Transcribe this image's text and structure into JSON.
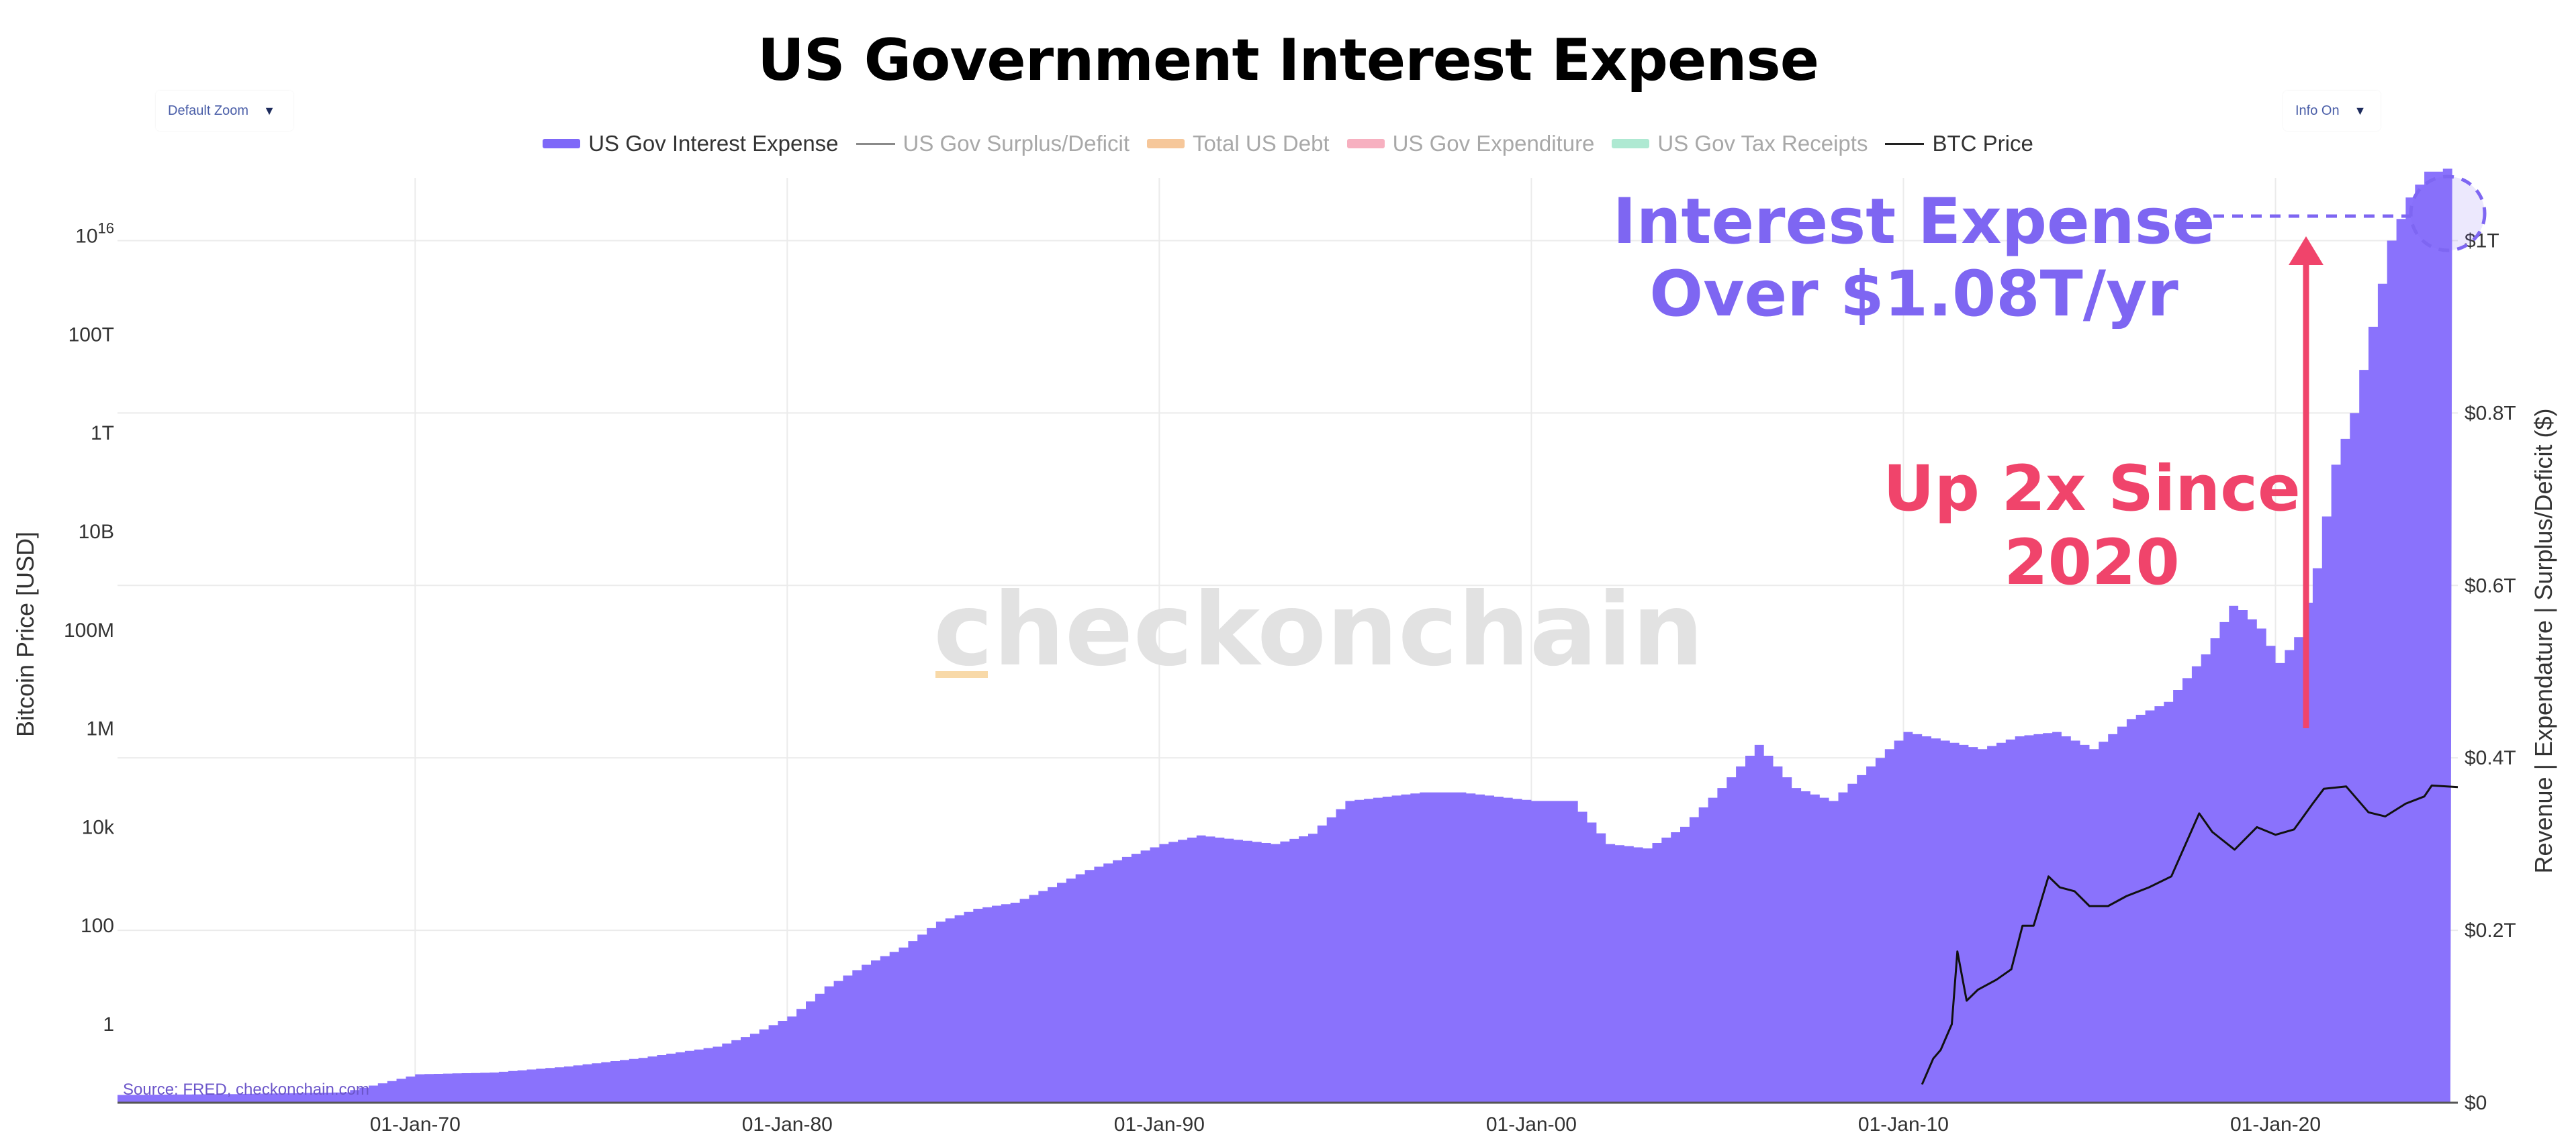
{
  "title": "US Government Interest Expense",
  "controls": {
    "zoom_label": "Default Zoom",
    "info_label": "Info On"
  },
  "legend": [
    {
      "label": "US Gov Interest Expense",
      "color": "#7e68f8",
      "style": "swatch",
      "active": true
    },
    {
      "label": "US Gov Surplus/Deficit",
      "color": "#8a8a8a",
      "style": "line",
      "active": false
    },
    {
      "label": "Total US Debt",
      "color": "#f6c79a",
      "style": "swatch",
      "active": false
    },
    {
      "label": "US Gov Expenditure",
      "color": "#f7b0c0",
      "style": "swatch",
      "active": false
    },
    {
      "label": "US Gov Tax Receipts",
      "color": "#aee9d2",
      "style": "swatch",
      "active": false
    },
    {
      "label": "BTC Price",
      "color": "#222222",
      "style": "line",
      "active": true
    }
  ],
  "watermark": "_checkonchain",
  "source": "Source: FRED, checkonchain.com",
  "annotations": {
    "interest_line1": "Interest Expense",
    "interest_line2": "Over $1.08T/yr",
    "up_line1": "Up 2x Since",
    "up_line2": "2020"
  },
  "colors": {
    "interest_fill": "#8a72fc",
    "btc_line": "#111111",
    "annotation_purple": "#7e66f2",
    "annotation_red": "#f0446b"
  },
  "chart_data": {
    "type": "area",
    "title": "US Government Interest Expense",
    "left_axis": {
      "label": "Bitcoin Price [USD]",
      "scale": "log",
      "ticks": [
        {
          "value": 1,
          "label": "1"
        },
        {
          "value": 100,
          "label": "100"
        },
        {
          "value": 10000,
          "label": "10k"
        },
        {
          "value": 1000000,
          "label": "1M"
        },
        {
          "value": 100000000,
          "label": "100M"
        },
        {
          "value": 10000000000,
          "label": "10B"
        },
        {
          "value": 1000000000000,
          "label": "1T"
        },
        {
          "value": 100000000000000,
          "label": "100T"
        },
        {
          "value": 10000000000000000,
          "label": "10^16"
        }
      ]
    },
    "right_axis": {
      "label": "Revenue | Expendature | Surplus/Deficit ($)",
      "scale": "linear",
      "ylim": [
        0,
        1.1
      ],
      "ticks": [
        {
          "value": 0,
          "label": "$0"
        },
        {
          "value": 0.2,
          "label": "$0.2T"
        },
        {
          "value": 0.4,
          "label": "$0.4T"
        },
        {
          "value": 0.6,
          "label": "$0.6T"
        },
        {
          "value": 0.8,
          "label": "$0.8T"
        },
        {
          "value": 1.0,
          "label": "$1T"
        }
      ]
    },
    "x_axis": {
      "range": [
        1962,
        2024.9
      ],
      "ticks": [
        {
          "value": 1970,
          "label": "01-Jan-70"
        },
        {
          "value": 1980,
          "label": "01-Jan-80"
        },
        {
          "value": 1990,
          "label": "01-Jan-90"
        },
        {
          "value": 2000,
          "label": "01-Jan-00"
        },
        {
          "value": 2010,
          "label": "01-Jan-10"
        },
        {
          "value": 2020,
          "label": "01-Jan-20"
        }
      ]
    },
    "series": [
      {
        "name": "US Gov Interest Expense",
        "axis": "right",
        "units": "trillions USD/yr",
        "x": [
          1962,
          1965,
          1968,
          1970,
          1972,
          1974,
          1976,
          1978,
          1979,
          1980,
          1981,
          1982,
          1983,
          1984,
          1985,
          1986,
          1987,
          1988,
          1989,
          1990,
          1991,
          1992,
          1993,
          1994,
          1995,
          1996,
          1997,
          1998,
          1999,
          2000,
          2001,
          2002,
          2003,
          2004,
          2005,
          2006,
          2007,
          2008,
          2009,
          2010,
          2011,
          2012,
          2013,
          2014,
          2015,
          2016,
          2017,
          2018,
          2018.8,
          2019.5,
          2020,
          2020.5,
          2021,
          2021.5,
          2022,
          2022.5,
          2023,
          2023.5,
          2024,
          2024.4,
          2024.7
        ],
        "values": [
          0.009,
          0.01,
          0.012,
          0.033,
          0.035,
          0.042,
          0.052,
          0.065,
          0.08,
          0.1,
          0.135,
          0.16,
          0.18,
          0.21,
          0.225,
          0.232,
          0.25,
          0.27,
          0.285,
          0.3,
          0.31,
          0.305,
          0.3,
          0.312,
          0.35,
          0.355,
          0.36,
          0.36,
          0.355,
          0.35,
          0.35,
          0.3,
          0.295,
          0.32,
          0.365,
          0.415,
          0.365,
          0.35,
          0.39,
          0.43,
          0.42,
          0.41,
          0.425,
          0.43,
          0.41,
          0.445,
          0.465,
          0.52,
          0.58,
          0.55,
          0.51,
          0.54,
          0.62,
          0.74,
          0.8,
          0.9,
          1.0,
          1.05,
          1.08,
          1.08,
          1.09
        ]
      },
      {
        "name": "BTC Price",
        "axis": "left",
        "units": "USD",
        "x": [
          2010.5,
          2010.8,
          2011.0,
          2011.3,
          2011.45,
          2011.7,
          2012.0,
          2012.5,
          2012.9,
          2013.2,
          2013.5,
          2013.9,
          2014.2,
          2014.6,
          2015.0,
          2015.5,
          2016.0,
          2016.6,
          2017.2,
          2017.95,
          2018.3,
          2018.9,
          2019.5,
          2020.0,
          2020.5,
          2021.0,
          2021.3,
          2021.9,
          2022.5,
          2022.95,
          2023.5,
          2024.0,
          2024.2,
          2024.9
        ],
        "values": [
          0.06,
          0.2,
          0.3,
          1,
          30,
          3,
          5,
          8,
          13,
          100,
          100,
          1000,
          600,
          500,
          250,
          250,
          400,
          600,
          1000,
          19000,
          8000,
          3500,
          10000,
          7000,
          9000,
          30000,
          60000,
          67000,
          20000,
          16500,
          30000,
          42000,
          70000,
          65000
        ]
      }
    ]
  }
}
